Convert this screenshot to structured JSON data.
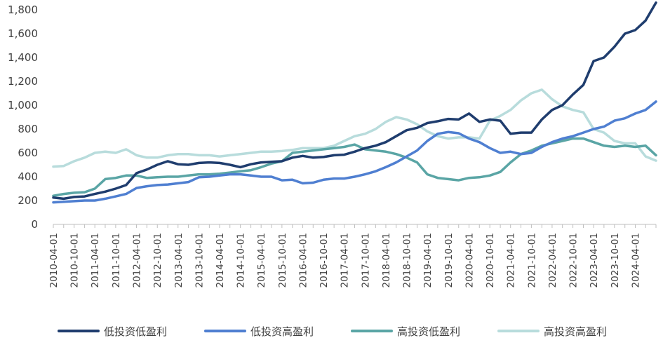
{
  "chart_data": {
    "type": "line",
    "title": "",
    "xlabel": "",
    "ylabel": "",
    "ylim": [
      0,
      1800
    ],
    "yticks": [
      0,
      200,
      400,
      600,
      800,
      1000,
      1200,
      1400,
      1600,
      1800
    ],
    "ytick_labels": [
      "0",
      "200",
      "400",
      "600",
      "800",
      "1,000",
      "1,200",
      "1,400",
      "1,600",
      "1,800"
    ],
    "x_tick_labels": [
      "2010-04-01",
      "2010-10-01",
      "2011-04-01",
      "2011-10-01",
      "2012-04-01",
      "2012-10-01",
      "2013-04-01",
      "2013-10-01",
      "2014-04-01",
      "2014-10-01",
      "2015-04-01",
      "2015-10-01",
      "2016-04-01",
      "2016-10-01",
      "2017-04-01",
      "2017-10-01",
      "2018-04-01",
      "2018-10-01",
      "2019-04-01",
      "2019-10-01",
      "2020-04-01",
      "2020-10-01",
      "2021-04-01",
      "2021-10-01",
      "2022-04-01",
      "2022-10-01",
      "2023-04-01",
      "2023-10-01",
      "2024-04-01"
    ],
    "x_dates": [
      "2010-04-01",
      "2010-07-01",
      "2010-10-01",
      "2011-01-01",
      "2011-04-01",
      "2011-07-01",
      "2011-10-01",
      "2012-01-01",
      "2012-04-01",
      "2012-07-01",
      "2012-10-01",
      "2013-01-01",
      "2013-04-01",
      "2013-07-01",
      "2013-10-01",
      "2014-01-01",
      "2014-04-01",
      "2014-07-01",
      "2014-10-01",
      "2015-01-01",
      "2015-04-01",
      "2015-07-01",
      "2015-10-01",
      "2016-01-01",
      "2016-04-01",
      "2016-07-01",
      "2016-10-01",
      "2017-01-01",
      "2017-04-01",
      "2017-07-01",
      "2017-10-01",
      "2018-01-01",
      "2018-04-01",
      "2018-07-01",
      "2018-10-01",
      "2019-01-01",
      "2019-04-01",
      "2019-07-01",
      "2019-10-01",
      "2020-01-01",
      "2020-04-01",
      "2020-07-01",
      "2020-10-01",
      "2021-01-01",
      "2021-04-01",
      "2021-07-01",
      "2021-10-01",
      "2022-01-01",
      "2022-04-01",
      "2022-07-01",
      "2022-10-01",
      "2023-01-01",
      "2023-04-01",
      "2023-07-01",
      "2023-10-01",
      "2024-01-01",
      "2024-04-01",
      "2024-07-01",
      "2024-09-30"
    ],
    "legend_position": "bottom",
    "grid": false,
    "series": [
      {
        "name": "低投资低盈利",
        "color": "#1f3d6e",
        "values": [
          225,
          215,
          230,
          235,
          255,
          275,
          300,
          330,
          430,
          460,
          500,
          530,
          505,
          500,
          515,
          520,
          515,
          500,
          480,
          505,
          520,
          525,
          530,
          560,
          575,
          560,
          565,
          580,
          585,
          610,
          640,
          660,
          690,
          740,
          790,
          810,
          850,
          865,
          885,
          880,
          930,
          860,
          880,
          870,
          760,
          770,
          770,
          880,
          960,
          1000,
          1090,
          1170,
          1370,
          1400,
          1490,
          1600,
          1630,
          1710,
          1860
        ]
      },
      {
        "name": "低投资高盈利",
        "color": "#4f7fd1",
        "values": [
          185,
          190,
          195,
          200,
          200,
          215,
          235,
          255,
          305,
          320,
          330,
          335,
          345,
          355,
          395,
          400,
          410,
          420,
          420,
          410,
          400,
          400,
          370,
          375,
          345,
          350,
          375,
          385,
          385,
          400,
          420,
          445,
          480,
          520,
          570,
          620,
          700,
          760,
          775,
          765,
          720,
          690,
          640,
          600,
          610,
          590,
          600,
          650,
          690,
          720,
          740,
          770,
          800,
          820,
          870,
          890,
          930,
          960,
          1030
        ]
      },
      {
        "name": "高投资低盈利",
        "color": "#5aa5a5",
        "values": [
          240,
          255,
          265,
          270,
          300,
          380,
          390,
          410,
          410,
          390,
          395,
          400,
          400,
          410,
          420,
          420,
          425,
          435,
          445,
          455,
          480,
          510,
          530,
          600,
          610,
          620,
          630,
          640,
          650,
          670,
          630,
          620,
          610,
          590,
          560,
          520,
          420,
          390,
          380,
          370,
          390,
          395,
          410,
          440,
          520,
          590,
          620,
          660,
          680,
          700,
          720,
          720,
          690,
          660,
          650,
          660,
          650,
          660,
          580
        ]
      },
      {
        "name": "高投资高盈利",
        "color": "#b8dcdc",
        "values": [
          485,
          490,
          530,
          560,
          600,
          610,
          600,
          630,
          580,
          560,
          560,
          580,
          590,
          590,
          580,
          580,
          570,
          580,
          590,
          600,
          610,
          610,
          615,
          625,
          640,
          640,
          640,
          660,
          700,
          740,
          760,
          800,
          860,
          900,
          880,
          840,
          780,
          740,
          720,
          730,
          730,
          720,
          870,
          910,
          960,
          1040,
          1100,
          1130,
          1050,
          990,
          960,
          940,
          800,
          770,
          700,
          680,
          680,
          570,
          535
        ]
      }
    ]
  }
}
